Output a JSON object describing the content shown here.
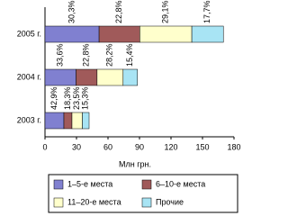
{
  "chart_data": {
    "type": "stacked-barh",
    "categories": [
      "2003 г.",
      "2004 г.",
      "2005 г."
    ],
    "series": [
      {
        "name": "1–5-е места",
        "color": "#8080d0",
        "values": [
          18,
          29.6,
          51.5
        ],
        "labels": [
          "42,9%",
          "33,6%",
          "30,3%"
        ]
      },
      {
        "name": "6–10-е места",
        "color": "#a05a5a",
        "values": [
          7.7,
          20,
          38.8
        ],
        "labels": [
          "18,3%",
          "22,8%",
          "22,8%"
        ]
      },
      {
        "name": "11–20-е места",
        "color": "#ffffcc",
        "values": [
          9.9,
          24.8,
          49.5
        ],
        "labels": [
          "23,5%",
          "28,2%",
          "29,1%"
        ]
      },
      {
        "name": "Прочие",
        "color": "#a8e4f4",
        "values": [
          6.4,
          13.6,
          30.1
        ],
        "labels": [
          "15,3%",
          "15,4%",
          "17,7%"
        ]
      }
    ],
    "xlabel": "Млн грн.",
    "xlim": [
      0,
      180
    ],
    "xticks": [
      0,
      30,
      60,
      90,
      120,
      150,
      180
    ]
  }
}
